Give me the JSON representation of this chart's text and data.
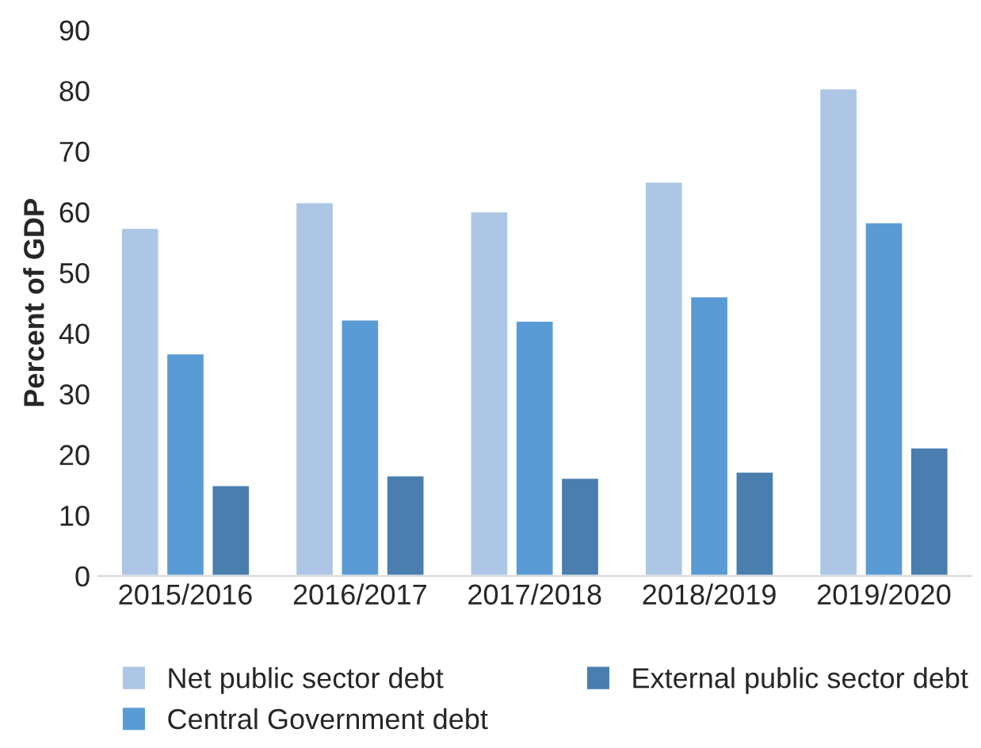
{
  "chart_data": {
    "type": "bar",
    "ylabel": "Percent of GDP",
    "categories": [
      "2015/2016",
      "2016/2017",
      "2017/2018",
      "2018/2019",
      "2019/2020"
    ],
    "series": [
      {
        "name": "Net public sector debt",
        "color": "#adc6e5",
        "values": [
          57.4,
          61.6,
          60.1,
          65.0,
          80.4
        ]
      },
      {
        "name": "Central Government debt",
        "color": "#5b9bd5",
        "values": [
          36.7,
          42.3,
          42.1,
          46.1,
          58.3
        ]
      },
      {
        "name": "External public sector debt",
        "color": "#4a7eae",
        "values": [
          15.0,
          16.6,
          16.2,
          17.2,
          21.2
        ]
      }
    ],
    "ylim": [
      0,
      90
    ],
    "yticks": [
      0,
      10,
      20,
      30,
      40,
      50,
      60,
      70,
      80,
      90
    ],
    "grid": false,
    "legend": "bottom"
  }
}
